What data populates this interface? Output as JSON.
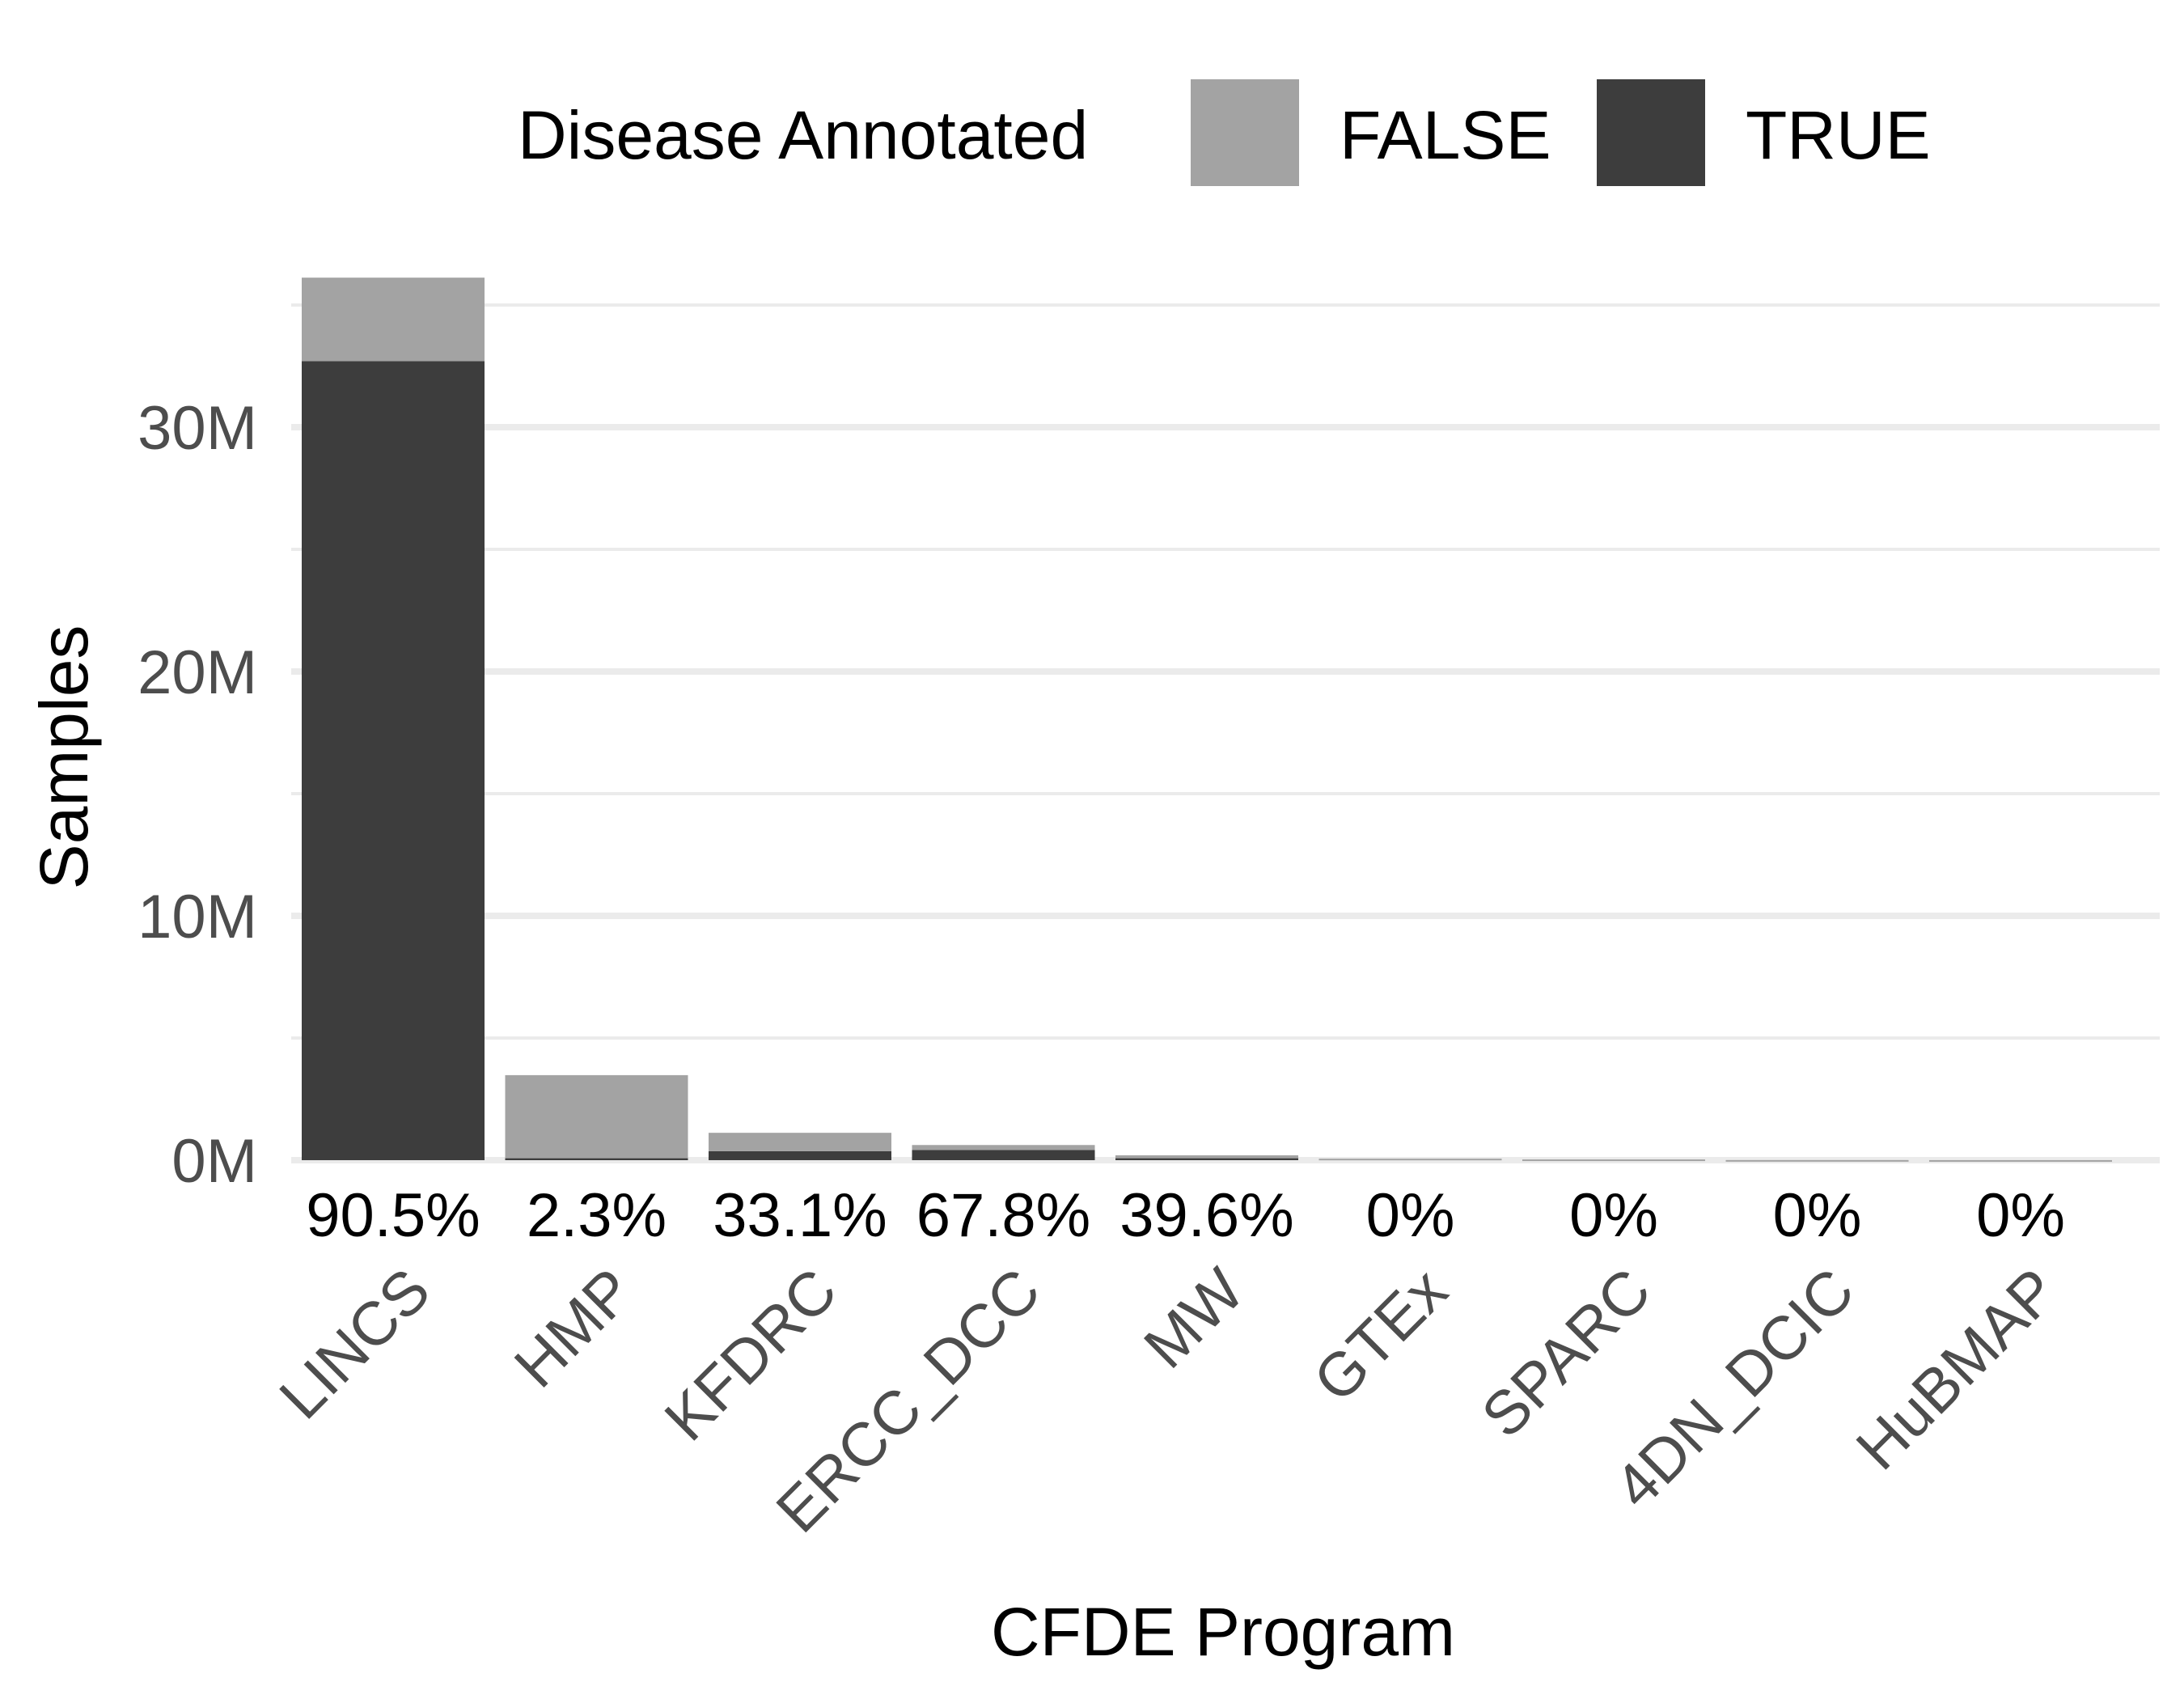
{
  "chart_data": {
    "type": "bar",
    "stacked": true,
    "xlabel": "CFDE Program",
    "ylabel": "Samples",
    "ylim": [
      0,
      36300000
    ],
    "yticks": [
      0,
      10000000,
      20000000,
      30000000
    ],
    "ytick_labels": [
      "0M",
      "10M",
      "20M",
      "30M"
    ],
    "grid": true,
    "legend": {
      "title": "Disease Annotated",
      "position": "top"
    },
    "colors": {
      "FALSE": "#a3a3a3",
      "TRUE": "#3d3d3d"
    },
    "categories": [
      "LINCS",
      "HMP",
      "KFDRC",
      "ERCC_DCC",
      "MW",
      "GTEx",
      "SPARC",
      "4DN_DCIC",
      "HuBMAP"
    ],
    "series": [
      {
        "name": "TRUE",
        "values": [
          32700000,
          80000,
          370000,
          420000,
          80000,
          0,
          0,
          0,
          0
        ]
      },
      {
        "name": "FALSE",
        "values": [
          3420000,
          3400000,
          750000,
          200000,
          120000,
          60000,
          30000,
          5000,
          2000
        ]
      }
    ],
    "percent_labels": [
      "90.5%",
      "2.3%",
      "33.1%",
      "67.8%",
      "39.6%",
      "0%",
      "0%",
      "0%",
      "0%"
    ]
  }
}
